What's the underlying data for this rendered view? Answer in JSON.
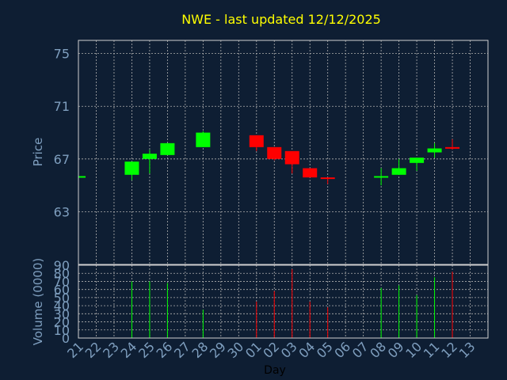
{
  "chart_data": {
    "type": "candlestick",
    "title": "NWE - last updated 12/12/2025",
    "price_axis": {
      "label": "Price",
      "ylim": [
        59,
        76
      ],
      "ticks": [
        63,
        67,
        71,
        75
      ]
    },
    "volume_axis": {
      "label": "Volume (0000)",
      "ylim": [
        0,
        90
      ],
      "ticks": [
        0,
        10,
        20,
        30,
        40,
        50,
        60,
        70,
        80,
        90
      ]
    },
    "xlabel": "Day",
    "x_ticks": [
      "21",
      "22",
      "23",
      "24",
      "25",
      "26",
      "27",
      "28",
      "29",
      "30",
      "01",
      "02",
      "03",
      "04",
      "05",
      "06",
      "07",
      "08",
      "09",
      "10",
      "11",
      "12",
      "13"
    ],
    "grid": true,
    "colors": {
      "background": "#0e1e33",
      "up": "#00ff00",
      "down": "#ff0000",
      "title": "#ffff00",
      "axis_text": "#7f9fbf",
      "frame": "#d0d0d0",
      "grid": "#b0b0b0"
    },
    "candles": [
      {
        "x": "21",
        "open": 65.6,
        "high": 65.7,
        "low": 65.5,
        "close": 65.7,
        "volume": 0
      },
      {
        "x": "24",
        "open": 65.8,
        "high": 66.8,
        "low": 65.4,
        "close": 66.8,
        "volume": 70
      },
      {
        "x": "25",
        "open": 67.0,
        "high": 67.7,
        "low": 65.9,
        "close": 67.4,
        "volume": 70
      },
      {
        "x": "26",
        "open": 67.3,
        "high": 68.2,
        "low": 67.3,
        "close": 68.2,
        "volume": 68
      },
      {
        "x": "28",
        "open": 67.9,
        "high": 69.1,
        "low": 67.9,
        "close": 69.0,
        "volume": 35
      },
      {
        "x": "01",
        "open": 68.8,
        "high": 68.8,
        "low": 67.6,
        "close": 67.9,
        "volume": 45
      },
      {
        "x": "02",
        "open": 67.9,
        "high": 67.9,
        "low": 66.9,
        "close": 67.0,
        "volume": 58
      },
      {
        "x": "03",
        "open": 67.6,
        "high": 67.6,
        "low": 65.9,
        "close": 66.6,
        "volume": 85
      },
      {
        "x": "04",
        "open": 66.3,
        "high": 66.3,
        "low": 65.6,
        "close": 65.6,
        "volume": 45
      },
      {
        "x": "05",
        "open": 65.6,
        "high": 65.6,
        "low": 65.1,
        "close": 65.5,
        "volume": 38
      },
      {
        "x": "08",
        "open": 65.6,
        "high": 66.3,
        "low": 65.0,
        "close": 65.7,
        "volume": 62
      },
      {
        "x": "09",
        "open": 65.8,
        "high": 67.0,
        "low": 65.8,
        "close": 66.3,
        "volume": 65
      },
      {
        "x": "10",
        "open": 66.7,
        "high": 67.1,
        "low": 66.1,
        "close": 67.1,
        "volume": 53
      },
      {
        "x": "11",
        "open": 67.5,
        "high": 68.2,
        "low": 67.1,
        "close": 67.8,
        "volume": 75
      },
      {
        "x": "12",
        "open": 67.9,
        "high": 68.5,
        "low": 67.7,
        "close": 67.8,
        "volume": 82
      }
    ]
  }
}
